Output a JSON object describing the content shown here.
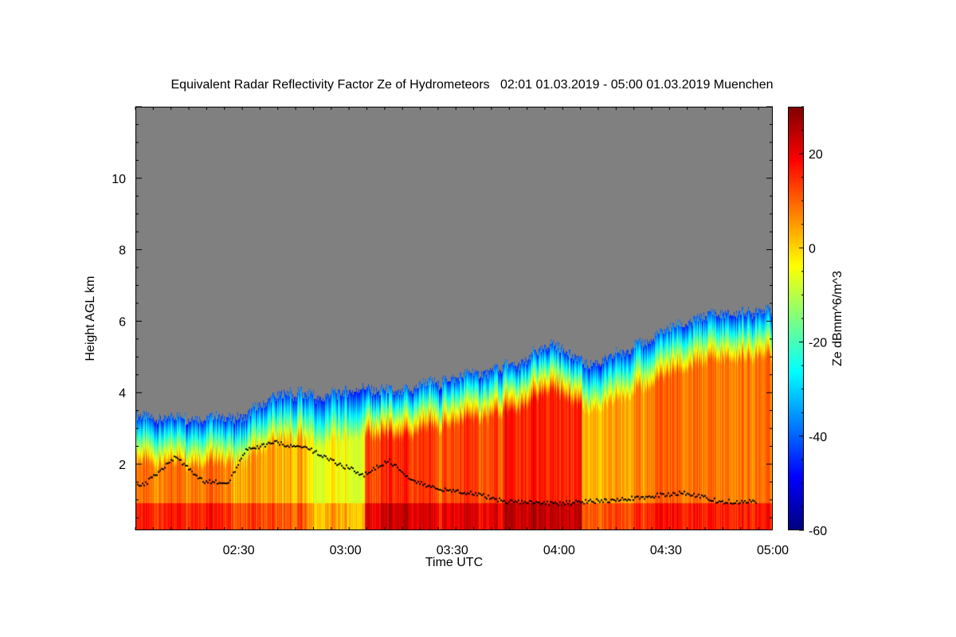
{
  "chart_data": {
    "type": "heatmap",
    "title": "Equivalent Radar Reflectivity Factor Ze of Hydrometeors   02:01 01.03.2019 - 05:00 01.03.2019 Muenchen",
    "xlabel": "Time UTC",
    "ylabel": "Height AGL km",
    "colorbar_label": "Ze dBmm^6/m^3",
    "x_range": [
      "02:01",
      "05:00"
    ],
    "x_ticks": [
      "02:30",
      "03:00",
      "03:30",
      "04:00",
      "04:30",
      "05:00"
    ],
    "ylim": [
      0.15,
      12
    ],
    "y_ticks": [
      2,
      4,
      6,
      8,
      10
    ],
    "colorbar_range": [
      -60,
      30
    ],
    "colorbar_ticks": [
      20,
      0,
      -20,
      -40,
      -60
    ],
    "colormap": "jet",
    "no_data_color": "#808080",
    "colors": {
      "jet_stops": [
        "#00007f",
        "#0000ff",
        "#007fff",
        "#00ffff",
        "#7fff7f",
        "#ffff00",
        "#ff7f00",
        "#ff0000",
        "#7f0000"
      ]
    },
    "echo_top_km": [
      {
        "time": "02:01",
        "top_km": 3.35
      },
      {
        "time": "02:20",
        "top_km": 3.25
      },
      {
        "time": "02:32",
        "top_km": 3.4
      },
      {
        "time": "02:42",
        "top_km": 4.0
      },
      {
        "time": "02:55",
        "top_km": 3.9
      },
      {
        "time": "03:05",
        "top_km": 4.2
      },
      {
        "time": "03:15",
        "top_km": 4.0
      },
      {
        "time": "03:25",
        "top_km": 4.3
      },
      {
        "time": "03:35",
        "top_km": 4.5
      },
      {
        "time": "03:48",
        "top_km": 4.8
      },
      {
        "time": "03:58",
        "top_km": 5.4
      },
      {
        "time": "04:08",
        "top_km": 4.8
      },
      {
        "time": "04:20",
        "top_km": 5.2
      },
      {
        "time": "04:32",
        "top_km": 5.8
      },
      {
        "time": "04:42",
        "top_km": 6.2
      },
      {
        "time": "05:00",
        "top_km": 6.3
      }
    ],
    "cloud_base_km": [
      {
        "time": "02:03",
        "base_km": 1.4
      },
      {
        "time": "02:12",
        "base_km": 2.2
      },
      {
        "time": "02:20",
        "base_km": 1.5
      },
      {
        "time": "02:27",
        "base_km": 1.5
      },
      {
        "time": "02:32",
        "base_km": 2.4
      },
      {
        "time": "02:40",
        "base_km": 2.6
      },
      {
        "time": "02:50",
        "base_km": 2.4
      },
      {
        "time": "02:58",
        "base_km": 2.0
      },
      {
        "time": "03:05",
        "base_km": 1.7
      },
      {
        "time": "03:12",
        "base_km": 2.1
      },
      {
        "time": "03:18",
        "base_km": 1.6
      },
      {
        "time": "03:25",
        "base_km": 1.3
      },
      {
        "time": "03:35",
        "base_km": 1.2
      },
      {
        "time": "03:45",
        "base_km": 0.95
      },
      {
        "time": "04:00",
        "base_km": 0.9
      },
      {
        "time": "04:15",
        "base_km": 1.0
      },
      {
        "time": "04:25",
        "base_km": 1.1
      },
      {
        "time": "04:35",
        "base_km": 1.2
      },
      {
        "time": "04:45",
        "base_km": 0.95
      },
      {
        "time": "04:57",
        "base_km": 0.95
      }
    ]
  }
}
